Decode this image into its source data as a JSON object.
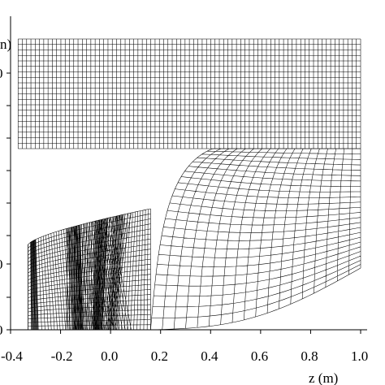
{
  "chart_data": {
    "type": "mesh",
    "title": "",
    "xlabel": "z (m)",
    "ylabel_partial": "n)",
    "xlim": [
      -0.4,
      1.0
    ],
    "x_ticks": [
      -0.4,
      -0.2,
      0.0,
      0.2,
      0.4,
      0.6,
      0.8,
      1.0
    ],
    "x_tick_labels": [
      "-0.4",
      "-0.2",
      "0.0",
      "0.2",
      "0.4",
      "0.6",
      "0.8",
      "1.0"
    ],
    "y_tick_labels": [
      "0",
      "",
      "",
      "0",
      "",
      "0"
    ],
    "regions": [
      {
        "name": "upper-rectangular-block",
        "z_range": [
          -0.37,
          1.0
        ],
        "cols": 80,
        "rows": 20
      },
      {
        "name": "curved-elbow-region",
        "z_range": [
          0.16,
          1.0
        ],
        "cols": 24,
        "rows": 18
      },
      {
        "name": "fan-transition-region",
        "z_range": [
          -0.33,
          0.16
        ],
        "cols": 48,
        "rows": 24
      }
    ]
  }
}
